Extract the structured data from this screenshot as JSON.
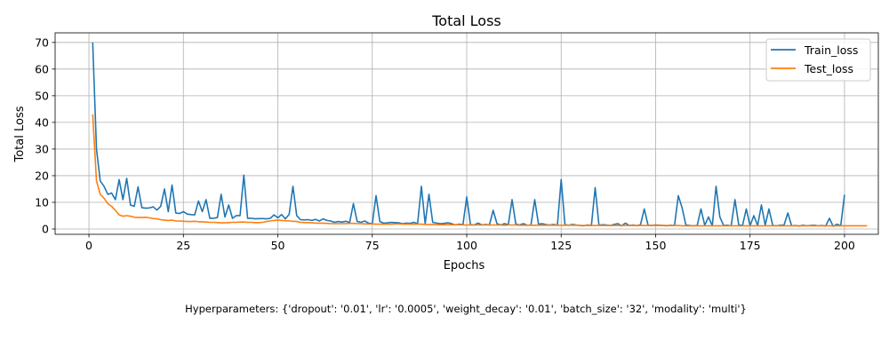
{
  "chart_data": {
    "type": "line",
    "title": "Total Loss",
    "xlabel": "Epochs",
    "ylabel": "Total Loss",
    "xlim": [
      -8.95,
      208.95
    ],
    "ylim": [
      -2.0,
      73.6
    ],
    "xticks": [
      0,
      25,
      50,
      75,
      100,
      125,
      150,
      175,
      200
    ],
    "yticks": [
      0,
      10,
      20,
      30,
      40,
      50,
      60,
      70
    ],
    "grid": true,
    "legend_placement": "top-right",
    "series": [
      {
        "name": "Train_loss",
        "color": "#1f77b4",
        "x_start": 1,
        "values": [
          70.0,
          30.0,
          18.0,
          16.0,
          13.0,
          13.5,
          11.0,
          18.5,
          11.0,
          19.0,
          9.0,
          8.5,
          15.8,
          8.0,
          7.8,
          7.9,
          8.3,
          7.1,
          8.5,
          15.0,
          6.5,
          16.5,
          6.0,
          5.8,
          6.5,
          5.6,
          5.4,
          5.3,
          10.5,
          6.5,
          11.0,
          4.0,
          4.0,
          4.3,
          13.0,
          4.5,
          9.0,
          4.0,
          5.0,
          5.0,
          20.2,
          4.0,
          4.0,
          3.8,
          3.9,
          3.9,
          3.8,
          4.0,
          5.3,
          4.2,
          5.4,
          3.8,
          5.5,
          16.0,
          5.0,
          3.5,
          3.4,
          3.5,
          3.2,
          3.6,
          3.0,
          3.8,
          3.2,
          3.0,
          2.5,
          2.8,
          2.6,
          2.9,
          2.4,
          9.5,
          2.8,
          2.5,
          3.0,
          2.2,
          2.0,
          12.5,
          2.8,
          2.2,
          2.3,
          2.5,
          2.4,
          2.3,
          2.0,
          2.2,
          2.1,
          2.5,
          2.0,
          16.0,
          2.0,
          13.0,
          2.5,
          2.2,
          2.0,
          2.1,
          2.3,
          2.0,
          1.5,
          1.8,
          1.6,
          12.0,
          1.6,
          1.5,
          2.2,
          1.5,
          1.7,
          1.5,
          7.0,
          2.0,
          1.5,
          2.0,
          1.6,
          11.0,
          1.8,
          1.5,
          2.0,
          1.4,
          1.5,
          11.0,
          1.8,
          2.0,
          1.6,
          1.5,
          1.7,
          1.4,
          18.5,
          1.6,
          1.4,
          1.7,
          1.5,
          1.3,
          1.2,
          1.5,
          1.3,
          15.5,
          1.4,
          1.6,
          1.5,
          1.3,
          1.7,
          2.0,
          1.2,
          2.2,
          1.3,
          1.5,
          1.2,
          1.6,
          7.5,
          1.4,
          1.3,
          1.5,
          1.4,
          1.3,
          1.2,
          1.4,
          1.3,
          12.5,
          8.0,
          1.5,
          1.3,
          1.2,
          1.3,
          7.5,
          1.4,
          4.5,
          1.2,
          16.0,
          4.5,
          1.3,
          1.4,
          1.2,
          11.0,
          1.5,
          1.3,
          7.5,
          1.2,
          5.0,
          1.3,
          9.0,
          1.4,
          7.5,
          1.3,
          1.2,
          1.4,
          1.5,
          6.0,
          1.2,
          1.3,
          1.1,
          1.4,
          1.2,
          1.3,
          1.4,
          1.2,
          1.3,
          1.1,
          4.0,
          1.0,
          1.8,
          1.3,
          12.8
        ]
      },
      {
        "name": "Test_loss",
        "color": "#ff7f0e",
        "x_start": 1,
        "values": [
          43.0,
          18.0,
          13.0,
          11.5,
          9.5,
          8.5,
          7.0,
          5.3,
          4.8,
          5.0,
          4.8,
          4.4,
          4.3,
          4.3,
          4.4,
          4.2,
          3.9,
          3.8,
          3.5,
          3.3,
          3.2,
          3.3,
          3.0,
          3.0,
          2.9,
          2.8,
          2.8,
          2.9,
          2.7,
          2.7,
          2.6,
          2.5,
          2.5,
          2.4,
          2.3,
          2.3,
          2.4,
          2.5,
          2.5,
          2.6,
          2.6,
          2.5,
          2.5,
          2.4,
          2.4,
          2.5,
          2.8,
          3.0,
          3.2,
          3.3,
          3.2,
          3.1,
          3.0,
          2.9,
          2.8,
          2.5,
          2.4,
          2.4,
          2.3,
          2.2,
          2.2,
          2.2,
          2.1,
          2.0,
          2.0,
          2.0,
          2.0,
          2.0,
          2.1,
          2.1,
          2.0,
          2.0,
          1.9,
          1.9,
          1.9,
          1.8,
          1.8,
          1.8,
          1.8,
          1.8,
          1.9,
          1.9,
          1.8,
          1.8,
          1.8,
          1.8,
          1.8,
          1.8,
          1.7,
          1.7,
          1.7,
          1.6,
          1.6,
          1.6,
          1.6,
          1.6,
          1.6,
          1.6,
          1.5,
          1.5,
          1.5,
          1.5,
          1.5,
          1.5,
          1.5,
          1.5,
          1.5,
          1.5,
          1.5,
          1.4,
          1.5,
          1.5,
          1.5,
          1.4,
          1.4,
          1.4,
          1.4,
          1.4,
          1.4,
          1.4,
          1.4,
          1.4,
          1.4,
          1.4,
          1.4,
          1.4,
          1.4,
          1.4,
          1.4,
          1.3,
          1.3,
          1.3,
          1.3,
          1.3,
          1.3,
          1.3,
          1.3,
          1.3,
          1.3,
          1.3,
          1.3,
          1.3,
          1.3,
          1.3,
          1.3,
          1.3,
          1.3,
          1.3,
          1.3,
          1.3,
          1.3,
          1.3,
          1.3,
          1.3,
          1.3,
          1.3,
          1.2,
          1.2,
          1.2,
          1.2,
          1.2,
          1.2,
          1.2,
          1.2,
          1.2,
          1.2,
          1.2,
          1.2,
          1.2,
          1.2,
          1.2,
          1.2,
          1.2,
          1.2,
          1.2,
          1.2,
          1.2,
          1.2,
          1.2,
          1.2,
          1.2,
          1.2,
          1.2,
          1.2,
          1.2,
          1.2,
          1.2,
          1.2,
          1.2,
          1.2,
          1.2,
          1.2,
          1.2,
          1.2,
          1.2,
          1.2,
          1.2,
          1.2,
          1.2,
          1.2,
          1.2,
          1.2,
          1.2,
          1.2,
          1.2,
          1.2
        ]
      }
    ]
  },
  "caption": "Hyperparameters: {'dropout': '0.01', 'lr': '0.0005', 'weight_decay': '0.01', 'batch_size': '32', 'modality': 'multi'}"
}
